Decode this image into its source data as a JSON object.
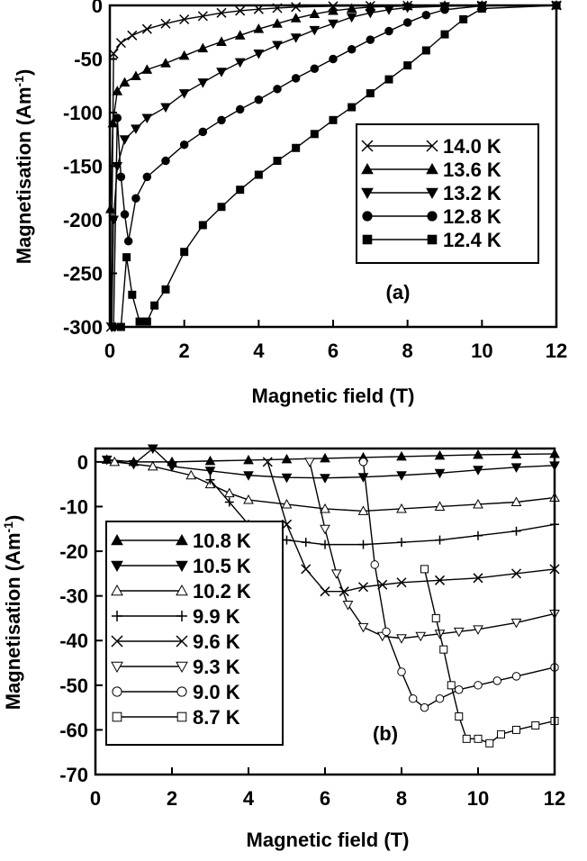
{
  "chart_data": [
    {
      "type": "line",
      "panel_label": "(a)",
      "xlabel": "Magnetic field (T)",
      "ylabel": "Magnetisation (Am",
      "ylabel_sup": "-1",
      "ylabel_close": ")",
      "xlim": [
        0,
        12
      ],
      "ylim": [
        -300,
        0
      ],
      "xticks": [
        "0",
        "2",
        "4",
        "6",
        "8",
        "10",
        "12"
      ],
      "yticks": [
        "0",
        "-50",
        "-100",
        "-150",
        "-200",
        "-250",
        "-300"
      ],
      "legend_position": "right",
      "series": [
        {
          "name": "14.0 K",
          "marker": "x",
          "x": [
            0.03,
            0.1,
            0.3,
            0.6,
            1.0,
            1.5,
            2.0,
            2.5,
            3.0,
            3.5,
            4.0,
            4.5,
            5.0,
            6.0,
            7.0,
            8.0,
            10.0,
            12.0
          ],
          "y": [
            -300,
            -45,
            -35,
            -28,
            -22,
            -17,
            -13,
            -10,
            -7,
            -5,
            -3.5,
            -2.5,
            -1.5,
            -0.8,
            -0.4,
            -0.2,
            -0.1,
            0
          ]
        },
        {
          "name": "13.6 K",
          "marker": "triangle-up",
          "x": [
            0.02,
            0.08,
            0.2,
            0.4,
            0.7,
            1.0,
            1.5,
            2.0,
            2.5,
            3.0,
            3.5,
            4.0,
            4.5,
            5.0,
            5.5,
            6.0,
            6.5,
            7.0,
            8.0,
            9.0,
            10.0,
            12.0
          ],
          "y": [
            -190,
            -110,
            -80,
            -72,
            -66,
            -60,
            -54,
            -47,
            -40,
            -34,
            -28,
            -22,
            -17,
            -12,
            -8,
            -5,
            -3,
            -1.5,
            -0.5,
            -0.2,
            -0.1,
            0
          ]
        },
        {
          "name": "13.2 K",
          "marker": "triangle-down",
          "x": [
            0.05,
            0.1,
            0.2,
            0.4,
            0.7,
            1.0,
            1.5,
            2.0,
            2.5,
            3.0,
            3.5,
            4.0,
            4.5,
            5.0,
            5.5,
            6.0,
            6.5,
            7.0,
            7.5,
            8.0,
            9.0,
            10.0,
            12.0
          ],
          "y": [
            -300,
            -200,
            -150,
            -125,
            -115,
            -105,
            -95,
            -82,
            -72,
            -62,
            -53,
            -45,
            -37,
            -30,
            -23,
            -17,
            -11,
            -7,
            -4,
            -2,
            -0.8,
            -0.3,
            0
          ]
        },
        {
          "name": "12.8 K",
          "marker": "circle",
          "x": [
            0.1,
            0.2,
            0.3,
            0.4,
            0.5,
            0.7,
            1.0,
            1.5,
            2.0,
            2.5,
            3.0,
            3.5,
            4.0,
            4.5,
            5.0,
            5.5,
            6.0,
            6.5,
            7.0,
            7.5,
            8.0,
            8.5,
            9.0,
            10.0,
            12.0
          ],
          "y": [
            -300,
            -105,
            -160,
            -195,
            -220,
            -180,
            -160,
            -145,
            -130,
            -118,
            -107,
            -97,
            -88,
            -78,
            -68,
            -59,
            -50,
            -41,
            -32,
            -24,
            -16,
            -9,
            -4,
            -0.5,
            0
          ]
        },
        {
          "name": "12.4 K",
          "marker": "square",
          "x": [
            0.3,
            0.45,
            0.6,
            0.8,
            1.0,
            1.2,
            1.5,
            2.0,
            2.5,
            3.0,
            3.5,
            4.0,
            4.5,
            5.0,
            5.5,
            6.0,
            6.5,
            7.0,
            7.5,
            8.0,
            8.5,
            9.0,
            9.5,
            10.0,
            12.0
          ],
          "y": [
            -300,
            -235,
            -270,
            -295,
            -295,
            -280,
            -265,
            -230,
            -205,
            -188,
            -172,
            -158,
            -145,
            -133,
            -120,
            -107,
            -95,
            -82,
            -69,
            -56,
            -42,
            -27,
            -13,
            -3,
            0
          ]
        }
      ]
    },
    {
      "type": "line",
      "panel_label": "(b)",
      "xlabel": "Magnetic field (T)",
      "ylabel": "Magnetisation (Am",
      "ylabel_sup": "-1",
      "ylabel_close": ")",
      "xlim": [
        0,
        12
      ],
      "ylim": [
        -70,
        3
      ],
      "xticks": [
        "0",
        "2",
        "4",
        "6",
        "8",
        "10",
        "12"
      ],
      "yticks": [
        "0",
        "-10",
        "-20",
        "-30",
        "-40",
        "-50",
        "-60",
        "-70"
      ],
      "legend_position": "left",
      "series": [
        {
          "name": "10.8 K",
          "marker": "triangle-up",
          "x": [
            0.3,
            1.0,
            2.0,
            3.0,
            4.0,
            5.0,
            6.0,
            7.0,
            8.0,
            9.0,
            10.0,
            11.0,
            12.0
          ],
          "y": [
            0.5,
            0,
            0,
            0.2,
            0.4,
            0.6,
            0.8,
            1.0,
            1.2,
            1.4,
            1.6,
            1.7,
            1.8
          ]
        },
        {
          "name": "10.5 K",
          "marker": "triangle-down",
          "x": [
            0.3,
            1.0,
            1.5,
            2.0,
            3.0,
            4.0,
            5.0,
            6.0,
            7.0,
            8.0,
            9.0,
            10.0,
            11.0,
            12.0
          ],
          "y": [
            0.5,
            -0.5,
            3,
            -1.0,
            -2.0,
            -3.0,
            -3.5,
            -3.6,
            -3.4,
            -3.0,
            -2.5,
            -1.8,
            -1.2,
            -0.8
          ]
        },
        {
          "name": "10.2 K",
          "marker": "triangle-up-open",
          "x": [
            0.5,
            1.5,
            2.5,
            3.0,
            3.5,
            4.0,
            5.0,
            6.0,
            7.0,
            8.0,
            9.0,
            10.0,
            11.0,
            12.0
          ],
          "y": [
            0,
            -1,
            -3,
            -5,
            -7,
            -8.5,
            -9.5,
            -10.5,
            -11,
            -10.5,
            -10,
            -9.5,
            -9,
            -8
          ]
        },
        {
          "name": "9.9 K",
          "marker": "plus",
          "x": [
            3.0,
            3.5,
            4.0,
            4.3,
            4.6,
            5.0,
            5.5,
            6.0,
            7.0,
            8.0,
            9.0,
            10.0,
            11.0,
            12.0
          ],
          "y": [
            -4,
            -9,
            -14,
            -16,
            -17,
            -17.5,
            -18,
            -18.5,
            -18.5,
            -18,
            -17.5,
            -16.5,
            -15.5,
            -14
          ]
        },
        {
          "name": "9.6 K",
          "marker": "x",
          "x": [
            4.5,
            5.0,
            5.5,
            6.0,
            6.5,
            7.0,
            7.5,
            8.0,
            9.0,
            10.0,
            11.0,
            12.0
          ],
          "y": [
            0,
            -14,
            -24,
            -29,
            -29,
            -28,
            -27.5,
            -27,
            -26.5,
            -26,
            -25,
            -24
          ]
        },
        {
          "name": "9.3 K",
          "marker": "triangle-down-open",
          "x": [
            5.6,
            6.0,
            6.3,
            6.6,
            7.0,
            7.5,
            8.0,
            8.5,
            9.0,
            9.5,
            10.0,
            11.0,
            12.0
          ],
          "y": [
            0,
            -15,
            -25,
            -32,
            -37,
            -39,
            -39.5,
            -39,
            -38.5,
            -38,
            -37.5,
            -36,
            -34
          ]
        },
        {
          "name": "9.0 K",
          "marker": "circle-open",
          "x": [
            7.0,
            7.3,
            7.6,
            8.0,
            8.3,
            8.6,
            9.0,
            9.5,
            10.0,
            10.5,
            11.0,
            12.0
          ],
          "y": [
            0,
            -23,
            -38,
            -47,
            -53,
            -55,
            -53,
            -51,
            -50,
            -49,
            -48,
            -46
          ]
        },
        {
          "name": "8.7 K",
          "marker": "square-open",
          "x": [
            8.6,
            8.9,
            9.1,
            9.3,
            9.5,
            9.7,
            10.0,
            10.3,
            10.6,
            11.0,
            11.5,
            12.0
          ],
          "y": [
            -24,
            -35,
            -42,
            -50,
            -57,
            -62,
            -62,
            -63,
            -61,
            -60,
            -59,
            -58
          ]
        }
      ]
    }
  ]
}
